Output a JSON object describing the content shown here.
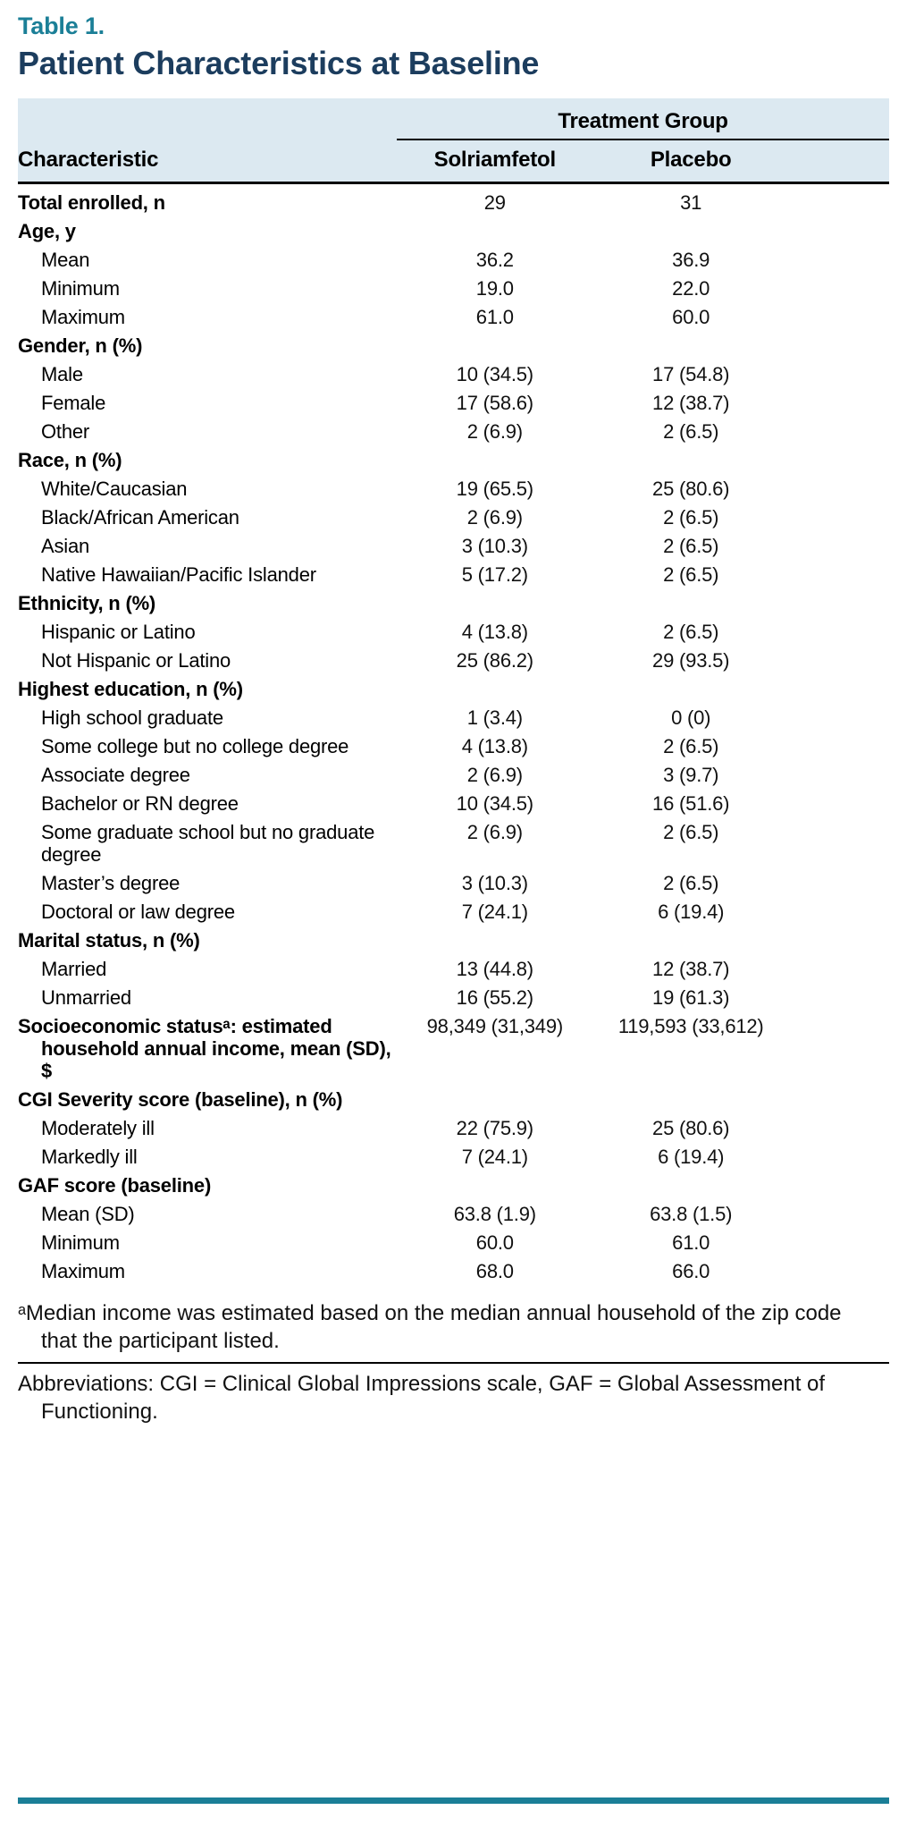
{
  "page": {
    "table_label": "Table 1.",
    "title": "Patient Characteristics at Baseline"
  },
  "table": {
    "group_header": "Treatment Group",
    "columns": {
      "characteristic": "Characteristic",
      "col1": "Solriamfetol",
      "col2": "Placebo"
    },
    "rows": [
      {
        "label": "Total enrolled, n",
        "bold": true,
        "indent": 0,
        "values": [
          "29",
          "31"
        ]
      },
      {
        "label": "Age, y",
        "bold": true,
        "indent": 0,
        "values": [
          "",
          ""
        ]
      },
      {
        "label": "Mean",
        "bold": false,
        "indent": 1,
        "values": [
          "36.2",
          "36.9"
        ]
      },
      {
        "label": "Minimum",
        "bold": false,
        "indent": 1,
        "values": [
          "19.0",
          "22.0"
        ]
      },
      {
        "label": "Maximum",
        "bold": false,
        "indent": 1,
        "values": [
          "61.0",
          "60.0"
        ]
      },
      {
        "label": "Gender, n (%)",
        "bold": true,
        "indent": 0,
        "values": [
          "",
          ""
        ]
      },
      {
        "label": "Male",
        "bold": false,
        "indent": 1,
        "values": [
          "10 (34.5)",
          "17 (54.8)"
        ]
      },
      {
        "label": "Female",
        "bold": false,
        "indent": 1,
        "values": [
          "17 (58.6)",
          "12 (38.7)"
        ]
      },
      {
        "label": "Other",
        "bold": false,
        "indent": 1,
        "values": [
          "2 (6.9)",
          "2 (6.5)"
        ]
      },
      {
        "label": "Race, n (%)",
        "bold": true,
        "indent": 0,
        "values": [
          "",
          ""
        ]
      },
      {
        "label": "White/Caucasian",
        "bold": false,
        "indent": 1,
        "values": [
          "19 (65.5)",
          "25 (80.6)"
        ]
      },
      {
        "label": "Black/African American",
        "bold": false,
        "indent": 1,
        "values": [
          "2 (6.9)",
          "2 (6.5)"
        ]
      },
      {
        "label": "Asian",
        "bold": false,
        "indent": 1,
        "values": [
          "3 (10.3)",
          "2 (6.5)"
        ]
      },
      {
        "label": "Native Hawaiian/Pacific Islander",
        "bold": false,
        "indent": 1,
        "values": [
          "5 (17.2)",
          "2 (6.5)"
        ]
      },
      {
        "label": "Ethnicity, n (%)",
        "bold": true,
        "indent": 0,
        "values": [
          "",
          ""
        ]
      },
      {
        "label": "Hispanic or Latino",
        "bold": false,
        "indent": 1,
        "values": [
          "4 (13.8)",
          "2 (6.5)"
        ]
      },
      {
        "label": "Not Hispanic or Latino",
        "bold": false,
        "indent": 1,
        "values": [
          "25 (86.2)",
          "29 (93.5)"
        ]
      },
      {
        "label": "Highest education, n (%)",
        "bold": true,
        "indent": 0,
        "values": [
          "",
          ""
        ]
      },
      {
        "label": "High school graduate",
        "bold": false,
        "indent": 1,
        "values": [
          "1 (3.4)",
          "0 (0)"
        ]
      },
      {
        "label": "Some college but no college degree",
        "bold": false,
        "indent": 1,
        "values": [
          "4 (13.8)",
          "2 (6.5)"
        ]
      },
      {
        "label": "Associate degree",
        "bold": false,
        "indent": 1,
        "values": [
          "2 (6.9)",
          "3 (9.7)"
        ]
      },
      {
        "label": "Bachelor or RN degree",
        "bold": false,
        "indent": 1,
        "values": [
          "10 (34.5)",
          "16 (51.6)"
        ]
      },
      {
        "label": "Some graduate school but no graduate degree",
        "bold": false,
        "indent": 1,
        "values": [
          "2 (6.9)",
          "2 (6.5)"
        ]
      },
      {
        "label": "Master’s degree",
        "bold": false,
        "indent": 1,
        "values": [
          "3 (10.3)",
          "2 (6.5)"
        ]
      },
      {
        "label": "Doctoral or law degree",
        "bold": false,
        "indent": 1,
        "values": [
          "7 (24.1)",
          "6 (19.4)"
        ]
      },
      {
        "label": "Marital status, n (%)",
        "bold": true,
        "indent": 0,
        "values": [
          "",
          ""
        ]
      },
      {
        "label": "Married",
        "bold": false,
        "indent": 1,
        "values": [
          "13 (44.8)",
          "12 (38.7)"
        ]
      },
      {
        "label": "Unmarried",
        "bold": false,
        "indent": 1,
        "values": [
          "16 (55.2)",
          "19 (61.3)"
        ]
      },
      {
        "label": "Socioeconomic statusᵃ: estimated household annual income, mean (SD), $",
        "bold": true,
        "indent": 0,
        "hanging": true,
        "values": [
          "98,349 (31,349)",
          "119,593 (33,612)"
        ]
      },
      {
        "label": "CGI Severity score (baseline), n (%)",
        "bold": true,
        "indent": 0,
        "values": [
          "",
          ""
        ]
      },
      {
        "label": "Moderately ill",
        "bold": false,
        "indent": 1,
        "values": [
          "22 (75.9)",
          "25 (80.6)"
        ]
      },
      {
        "label": "Markedly ill",
        "bold": false,
        "indent": 1,
        "values": [
          "7 (24.1)",
          "6 (19.4)"
        ]
      },
      {
        "label": "GAF score (baseline)",
        "bold": true,
        "indent": 0,
        "values": [
          "",
          ""
        ]
      },
      {
        "label": "Mean (SD)",
        "bold": false,
        "indent": 1,
        "values": [
          "63.8 (1.9)",
          "63.8 (1.5)"
        ]
      },
      {
        "label": "Minimum",
        "bold": false,
        "indent": 1,
        "values": [
          "60.0",
          "61.0"
        ]
      },
      {
        "label": "Maximum",
        "bold": false,
        "indent": 1,
        "values": [
          "68.0",
          "66.0"
        ]
      }
    ]
  },
  "footnotes": {
    "note_a": "ᵃMedian income was estimated based on the median annual household of the zip code that the participant listed.",
    "abbreviations": "Abbreviations: CGI = Clinical Global Impressions scale, GAF = Global Assessment of Functioning."
  },
  "colors": {
    "accent_teal": "#1B7F97",
    "title_navy": "#1C3D5E",
    "header_bg": "#DCE9F1"
  }
}
